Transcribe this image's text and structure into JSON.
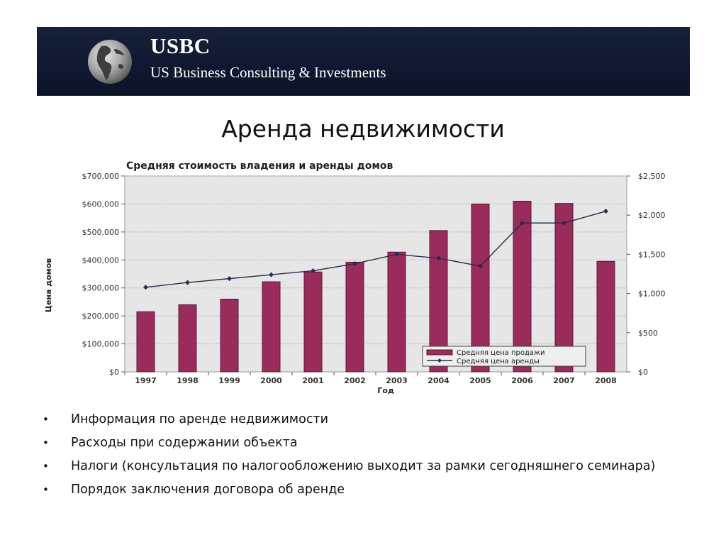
{
  "header": {
    "brand_name": "USBC",
    "brand_subtitle": "US Business Consulting & Investments",
    "logo_icon": "globe-icon"
  },
  "slide": {
    "title": "Аренда недвижимости"
  },
  "chart_data": {
    "type": "bar",
    "title": "Средняя стоимость владения и аренды домов",
    "xlabel": "Год",
    "ylabel": "Цена домов",
    "categories": [
      "1997",
      "1998",
      "1999",
      "2000",
      "2001",
      "2002",
      "2003",
      "2004",
      "2005",
      "2006",
      "2007",
      "2008"
    ],
    "series": [
      {
        "name": "Средняя цена продажи",
        "kind": "bar",
        "axis": "left",
        "color": "#9a2c5c",
        "values": [
          215000,
          240000,
          260000,
          322000,
          357000,
          392000,
          428000,
          505000,
          600000,
          610000,
          602000,
          395000
        ]
      },
      {
        "name": "Средняя цена аренды",
        "kind": "line",
        "axis": "right",
        "color": "#2e2a4a",
        "values": [
          1080,
          1140,
          1190,
          1240,
          1290,
          1380,
          1500,
          1450,
          1350,
          1900,
          1900,
          2050
        ]
      }
    ],
    "ylim_left": [
      0,
      700000
    ],
    "yticks_left": [
      "$0",
      "$100,000",
      "$200,000",
      "$300,000",
      "$400,000",
      "$500,000",
      "$600,000",
      "$700,000"
    ],
    "ylim_right": [
      0,
      2500
    ],
    "yticks_right": [
      "$0",
      "$500",
      "$1,000",
      "$1,500",
      "$2,000",
      "$2,500"
    ],
    "grid": true,
    "legend_position": "bottom-right"
  },
  "bullets": [
    "Информация по аренде недвижимости",
    "Расходы при содержании объекта",
    "Налоги (консультация по налогообложению выходит за рамки сегодняшнего семинара)",
    "Порядок заключения договора об аренде"
  ],
  "bullet_glyph": "•",
  "colors": {
    "banner": "#111a33",
    "bar": "#9a2c5c",
    "line": "#2e2a4a",
    "plot_bg": "#e6e6e6"
  }
}
